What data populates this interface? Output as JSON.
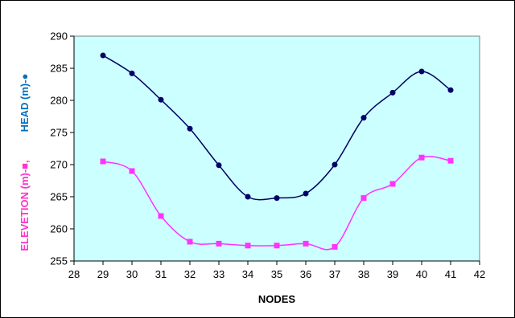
{
  "chart_data": {
    "type": "line",
    "xlabel": "NODES",
    "ylabel_head": "HEAD (m)-●",
    "ylabel_elev": "ELEVETION (m)-■,",
    "xlim": [
      28,
      42
    ],
    "ylim": [
      255,
      290
    ],
    "xticks": [
      "28",
      "29",
      "30",
      "31",
      "32",
      "33",
      "34",
      "35",
      "36",
      "37",
      "38",
      "39",
      "40",
      "41",
      "42"
    ],
    "yticks": [
      "255",
      "260",
      "265",
      "270",
      "275",
      "280",
      "285",
      "290"
    ],
    "plot_background": "#ccffff",
    "grid": false,
    "legend": "none",
    "series": [
      {
        "key": "head",
        "marker": "circle",
        "color": "#000066",
        "x": [
          29,
          30,
          31,
          32,
          33,
          34,
          35,
          36,
          37,
          38,
          39,
          40,
          41
        ],
        "values": [
          287.0,
          284.2,
          280.1,
          275.6,
          269.9,
          265.0,
          264.8,
          265.5,
          270.0,
          277.3,
          281.2,
          284.5,
          281.6
        ]
      },
      {
        "key": "elevation",
        "marker": "square",
        "color": "#ff33ff",
        "x": [
          29,
          30,
          31,
          32,
          33,
          34,
          35,
          36,
          37,
          38,
          39,
          40,
          41
        ],
        "values": [
          270.5,
          269.0,
          262.0,
          258.0,
          257.7,
          257.4,
          257.4,
          257.7,
          257.2,
          264.8,
          267.0,
          271.1,
          270.6
        ]
      }
    ],
    "colors": {
      "head_label": "#0070c0",
      "elev_label": "#ff33cc"
    }
  }
}
